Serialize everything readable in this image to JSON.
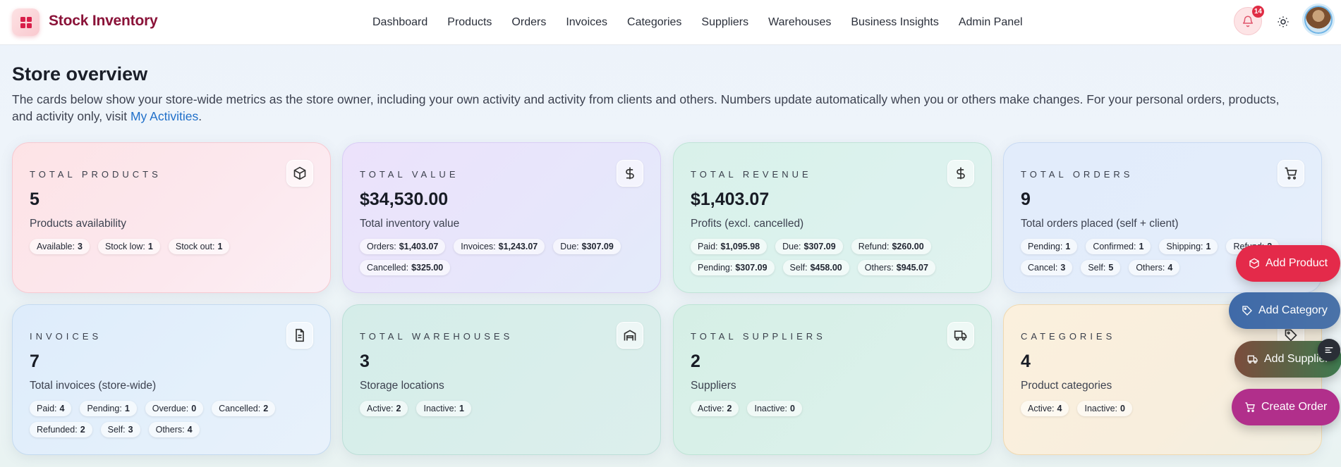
{
  "brand": {
    "title": "Stock Inventory"
  },
  "nav": [
    "Dashboard",
    "Products",
    "Orders",
    "Invoices",
    "Categories",
    "Suppliers",
    "Warehouses",
    "Business Insights",
    "Admin Panel"
  ],
  "notifications": {
    "count": "14"
  },
  "header": {
    "title": "Store overview",
    "description": "The cards below show your store-wide metrics as the store owner, including your own activity and activity from clients and others. Numbers update automatically when you or others make changes. For your personal orders, products, and activity only, visit ",
    "link": "My Activities",
    "suffix": "."
  },
  "cards": [
    {
      "label": "TOTAL PRODUCTS",
      "value": "5",
      "sub": "Products availability",
      "icon": "box-icon",
      "chips": [
        [
          "Available:",
          "3"
        ],
        [
          "Stock low:",
          "1"
        ],
        [
          "Stock out:",
          "1"
        ]
      ]
    },
    {
      "label": "TOTAL VALUE",
      "value": "$34,530.00",
      "sub": "Total inventory value",
      "icon": "dollar-icon",
      "chips": [
        [
          "Orders:",
          "$1,403.07"
        ],
        [
          "Invoices:",
          "$1,243.07"
        ],
        [
          "Due:",
          "$307.09"
        ],
        [
          "Cancelled:",
          "$325.00"
        ]
      ]
    },
    {
      "label": "TOTAL REVENUE",
      "value": "$1,403.07",
      "sub": "Profits (excl. cancelled)",
      "icon": "dollar-icon",
      "chips": [
        [
          "Paid:",
          "$1,095.98"
        ],
        [
          "Due:",
          "$307.09"
        ],
        [
          "Refund:",
          "$260.00"
        ],
        [
          "Pending:",
          "$307.09"
        ],
        [
          "Self:",
          "$458.00"
        ],
        [
          "Others:",
          "$945.07"
        ]
      ]
    },
    {
      "label": "TOTAL ORDERS",
      "value": "9",
      "sub": "Total orders placed (self + client)",
      "icon": "cart-icon",
      "chips": [
        [
          "Pending:",
          "1"
        ],
        [
          "Confirmed:",
          "1"
        ],
        [
          "Shipping:",
          "1"
        ],
        [
          "Refund:",
          "2"
        ],
        [
          "Cancel:",
          "3"
        ],
        [
          "Self:",
          "5"
        ],
        [
          "Others:",
          "4"
        ]
      ]
    },
    {
      "label": "INVOICES",
      "value": "7",
      "sub": "Total invoices (store-wide)",
      "icon": "document-icon",
      "chips": [
        [
          "Paid:",
          "4"
        ],
        [
          "Pending:",
          "1"
        ],
        [
          "Overdue:",
          "0"
        ],
        [
          "Cancelled:",
          "2"
        ],
        [
          "Refunded:",
          "2"
        ],
        [
          "Self:",
          "3"
        ],
        [
          "Others:",
          "4"
        ]
      ]
    },
    {
      "label": "TOTAL WAREHOUSES",
      "value": "3",
      "sub": "Storage locations",
      "icon": "warehouse-icon",
      "chips": [
        [
          "Active:",
          "2"
        ],
        [
          "Inactive:",
          "1"
        ]
      ]
    },
    {
      "label": "TOTAL SUPPLIERS",
      "value": "2",
      "sub": "Suppliers",
      "icon": "truck-icon",
      "chips": [
        [
          "Active:",
          "2"
        ],
        [
          "Inactive:",
          "0"
        ]
      ]
    },
    {
      "label": "CATEGORIES",
      "value": "4",
      "sub": "Product categories",
      "icon": "tag-icon",
      "chips": [
        [
          "Active:",
          "4"
        ],
        [
          "Inactive:",
          "0"
        ]
      ]
    }
  ],
  "fabs": [
    "Add Product",
    "Add Category",
    "Add Supplier",
    "Create Order"
  ],
  "colors": {
    "brand": "#8a1238",
    "link": "#1f6fc9",
    "fab_product": "#e42a4a",
    "fab_order": "#b12f8b"
  }
}
